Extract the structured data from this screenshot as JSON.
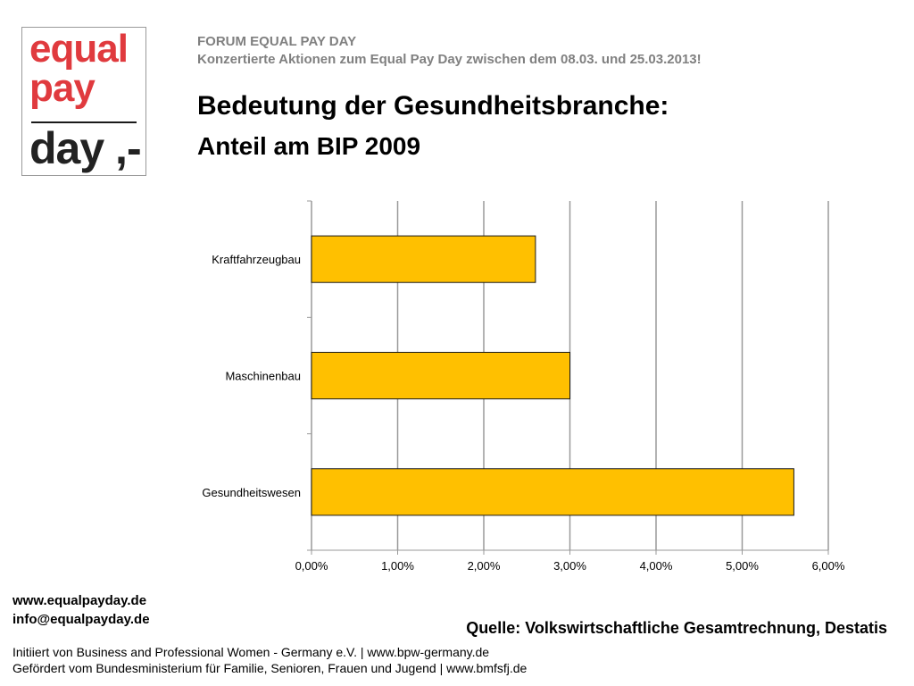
{
  "logo": {
    "line1": "equal",
    "line2": "pay",
    "line3": "day ,-"
  },
  "header": {
    "forum": "FORUM EQUAL PAY DAY",
    "subtitle": "Konzertierte Aktionen zum Equal Pay Day zwischen dem 08.03. und 25.03.2013!",
    "title": "Bedeutung der Gesundheitsbranche:",
    "title2": "Anteil am BIP 2009"
  },
  "colors": {
    "bar": "#FFC000",
    "bar_stroke": "#1a1a1a",
    "grid": "#9a9a9a",
    "logo_red": "#e03a3e"
  },
  "chart_data": {
    "type": "bar",
    "orientation": "horizontal",
    "categories": [
      "Kraftfahrzeugbau",
      "Maschinenbau",
      "Gesundheitswesen"
    ],
    "values": [
      2.6,
      3.0,
      5.6
    ],
    "xlim": [
      0,
      6
    ],
    "xticks": [
      "0,00%",
      "1,00%",
      "2,00%",
      "3,00%",
      "4,00%",
      "5,00%",
      "6,00%"
    ],
    "xlabel": "",
    "ylabel": "",
    "grid": true,
    "legend": "none"
  },
  "footer": {
    "web": "www.equalpayday.de",
    "mail": "info@equalpayday.de",
    "source": "Quelle: Volkswirtschaftliche Gesamtrechnung, Destatis",
    "line1": "Initiiert von Business and Professional Women - Germany e.V. |  www.bpw-germany.de",
    "line2": "Gefördert vom Bundesministerium für Familie, Senioren, Frauen und Jugend  |  www.bmfsfj.de"
  }
}
